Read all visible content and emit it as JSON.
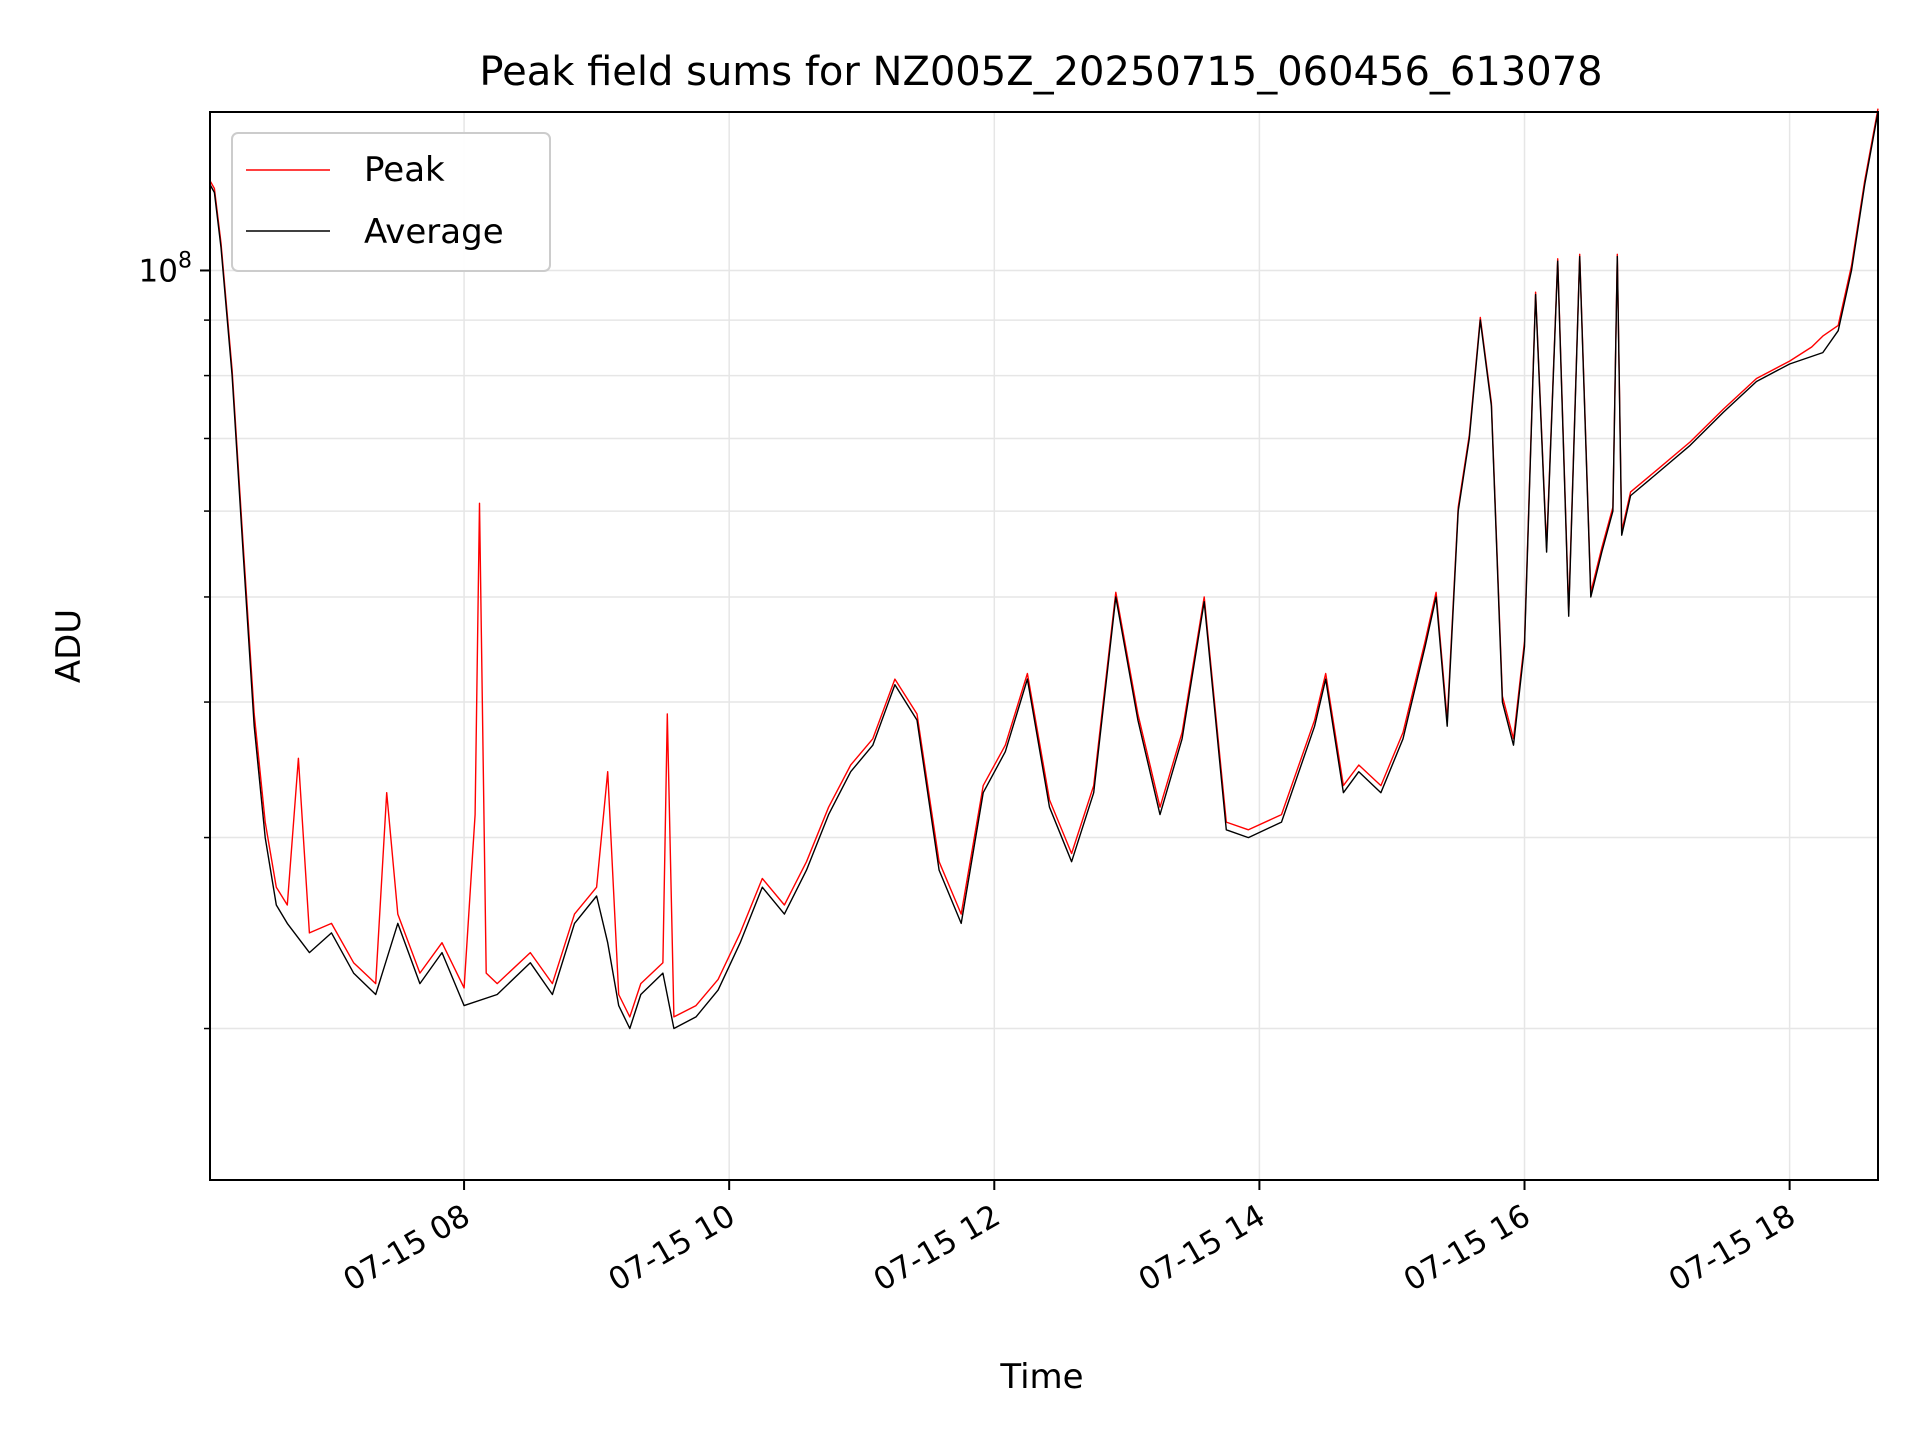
{
  "chart_data": {
    "type": "line",
    "title": "Peak field sums for NZ005Z_20250715_060456_613078",
    "xlabel": "Time",
    "ylabel": "ADU",
    "x_axis": {
      "kind": "time",
      "range": [
        "2025-07-15 06:05",
        "2025-07-15 18:40"
      ],
      "ticks": [
        {
          "value": "2025-07-15 08:00",
          "label": "07-15 08"
        },
        {
          "value": "2025-07-15 10:00",
          "label": "07-15 10"
        },
        {
          "value": "2025-07-15 12:00",
          "label": "07-15 12"
        },
        {
          "value": "2025-07-15 14:00",
          "label": "07-15 14"
        },
        {
          "value": "2025-07-15 16:00",
          "label": "07-15 16"
        },
        {
          "value": "2025-07-15 18:00",
          "label": "07-15 18"
        }
      ]
    },
    "y_axis": {
      "scale": "log",
      "range": [
        14500000,
        140000000
      ],
      "major_ticks": [
        {
          "value": 100000000,
          "base": "10",
          "exponent": "8"
        }
      ],
      "minor_ticks": [
        20000000,
        30000000,
        40000000,
        50000000,
        60000000,
        70000000,
        80000000,
        90000000
      ]
    },
    "grid": true,
    "legend": {
      "placement": "top-left",
      "entries": [
        {
          "label": "Peak",
          "color": "#ff0000"
        },
        {
          "label": "Average",
          "color": "#000000"
        }
      ]
    },
    "series": [
      {
        "name": "Average",
        "color": "#000000",
        "points": [
          [
            "2025-07-15 06:05",
            120000000
          ],
          [
            "2025-07-15 06:07",
            118000000
          ],
          [
            "2025-07-15 06:10",
            105000000
          ],
          [
            "2025-07-15 06:15",
            80000000
          ],
          [
            "2025-07-15 06:20",
            55000000
          ],
          [
            "2025-07-15 06:25",
            38000000
          ],
          [
            "2025-07-15 06:30",
            30000000
          ],
          [
            "2025-07-15 06:35",
            26000000
          ],
          [
            "2025-07-15 06:40",
            25000000
          ],
          [
            "2025-07-15 06:50",
            23500000
          ],
          [
            "2025-07-15 07:00",
            24500000
          ],
          [
            "2025-07-15 07:10",
            22500000
          ],
          [
            "2025-07-15 07:20",
            21500000
          ],
          [
            "2025-07-15 07:30",
            25000000
          ],
          [
            "2025-07-15 07:40",
            22000000
          ],
          [
            "2025-07-15 07:50",
            23500000
          ],
          [
            "2025-07-15 08:00",
            21000000
          ],
          [
            "2025-07-15 08:15",
            21500000
          ],
          [
            "2025-07-15 08:30",
            23000000
          ],
          [
            "2025-07-15 08:40",
            21500000
          ],
          [
            "2025-07-15 08:50",
            25000000
          ],
          [
            "2025-07-15 09:00",
            26500000
          ],
          [
            "2025-07-15 09:05",
            24000000
          ],
          [
            "2025-07-15 09:10",
            21000000
          ],
          [
            "2025-07-15 09:15",
            20000000
          ],
          [
            "2025-07-15 09:20",
            21500000
          ],
          [
            "2025-07-15 09:30",
            22500000
          ],
          [
            "2025-07-15 09:35",
            20000000
          ],
          [
            "2025-07-15 09:45",
            20500000
          ],
          [
            "2025-07-15 09:55",
            21700000
          ],
          [
            "2025-07-15 10:05",
            24000000
          ],
          [
            "2025-07-15 10:15",
            27000000
          ],
          [
            "2025-07-15 10:25",
            25500000
          ],
          [
            "2025-07-15 10:35",
            28000000
          ],
          [
            "2025-07-15 10:45",
            31500000
          ],
          [
            "2025-07-15 10:55",
            34500000
          ],
          [
            "2025-07-15 11:05",
            36500000
          ],
          [
            "2025-07-15 11:15",
            41500000
          ],
          [
            "2025-07-15 11:25",
            38500000
          ],
          [
            "2025-07-15 11:35",
            28000000
          ],
          [
            "2025-07-15 11:45",
            25000000
          ],
          [
            "2025-07-15 11:55",
            33000000
          ],
          [
            "2025-07-15 12:05",
            36000000
          ],
          [
            "2025-07-15 12:15",
            42000000
          ],
          [
            "2025-07-15 12:25",
            32000000
          ],
          [
            "2025-07-15 12:35",
            28500000
          ],
          [
            "2025-07-15 12:45",
            33000000
          ],
          [
            "2025-07-15 12:55",
            50000000
          ],
          [
            "2025-07-15 13:05",
            38500000
          ],
          [
            "2025-07-15 13:15",
            31500000
          ],
          [
            "2025-07-15 13:25",
            37000000
          ],
          [
            "2025-07-15 13:35",
            49500000
          ],
          [
            "2025-07-15 13:45",
            30500000
          ],
          [
            "2025-07-15 13:55",
            30000000
          ],
          [
            "2025-07-15 14:10",
            31000000
          ],
          [
            "2025-07-15 14:25",
            38000000
          ],
          [
            "2025-07-15 14:30",
            42000000
          ],
          [
            "2025-07-15 14:38",
            33000000
          ],
          [
            "2025-07-15 14:45",
            34500000
          ],
          [
            "2025-07-15 14:55",
            33000000
          ],
          [
            "2025-07-15 15:05",
            37000000
          ],
          [
            "2025-07-15 15:15",
            45000000
          ],
          [
            "2025-07-15 15:20",
            50000000
          ],
          [
            "2025-07-15 15:25",
            38000000
          ],
          [
            "2025-07-15 15:30",
            60000000
          ],
          [
            "2025-07-15 15:35",
            70000000
          ],
          [
            "2025-07-15 15:40",
            90000000
          ],
          [
            "2025-07-15 15:45",
            75000000
          ],
          [
            "2025-07-15 15:50",
            40000000
          ],
          [
            "2025-07-15 15:55",
            36500000
          ],
          [
            "2025-07-15 16:00",
            45000000
          ],
          [
            "2025-07-15 16:05",
            95000000
          ],
          [
            "2025-07-15 16:10",
            55000000
          ],
          [
            "2025-07-15 16:15",
            102000000
          ],
          [
            "2025-07-15 16:20",
            48000000
          ],
          [
            "2025-07-15 16:25",
            103000000
          ],
          [
            "2025-07-15 16:30",
            50000000
          ],
          [
            "2025-07-15 16:35",
            55000000
          ],
          [
            "2025-07-15 16:40",
            60000000
          ],
          [
            "2025-07-15 16:42",
            103000000
          ],
          [
            "2025-07-15 16:44",
            57000000
          ],
          [
            "2025-07-15 16:48",
            62000000
          ],
          [
            "2025-07-15 17:00",
            65000000
          ],
          [
            "2025-07-15 17:15",
            69000000
          ],
          [
            "2025-07-15 17:30",
            74000000
          ],
          [
            "2025-07-15 17:45",
            79000000
          ],
          [
            "2025-07-15 18:00",
            82000000
          ],
          [
            "2025-07-15 18:15",
            84000000
          ],
          [
            "2025-07-15 18:22",
            88000000
          ],
          [
            "2025-07-15 18:28",
            100000000
          ],
          [
            "2025-07-15 18:34",
            120000000
          ],
          [
            "2025-07-15 18:40",
            140000000
          ]
        ]
      },
      {
        "name": "Peak",
        "color": "#ff0000",
        "description_of_difference": "",
        "points": [
          [
            "2025-07-15 06:05",
            121000000
          ],
          [
            "2025-07-15 06:07",
            119000000
          ],
          [
            "2025-07-15 06:10",
            106000000
          ],
          [
            "2025-07-15 06:15",
            81000000
          ],
          [
            "2025-07-15 06:20",
            56000000
          ],
          [
            "2025-07-15 06:25",
            39000000
          ],
          [
            "2025-07-15 06:30",
            31000000
          ],
          [
            "2025-07-15 06:35",
            27000000
          ],
          [
            "2025-07-15 06:40",
            26000000
          ],
          [
            "2025-07-15 06:45",
            35500000
          ],
          [
            "2025-07-15 06:50",
            24500000
          ],
          [
            "2025-07-15 07:00",
            25000000
          ],
          [
            "2025-07-15 07:10",
            23000000
          ],
          [
            "2025-07-15 07:20",
            22000000
          ],
          [
            "2025-07-15 07:25",
            33000000
          ],
          [
            "2025-07-15 07:30",
            25500000
          ],
          [
            "2025-07-15 07:40",
            22500000
          ],
          [
            "2025-07-15 07:50",
            24000000
          ],
          [
            "2025-07-15 08:00",
            21800000
          ],
          [
            "2025-07-15 08:05",
            31500000
          ],
          [
            "2025-07-15 08:07",
            61000000
          ],
          [
            "2025-07-15 08:10",
            22500000
          ],
          [
            "2025-07-15 08:15",
            22000000
          ],
          [
            "2025-07-15 08:30",
            23500000
          ],
          [
            "2025-07-15 08:40",
            22000000
          ],
          [
            "2025-07-15 08:50",
            25500000
          ],
          [
            "2025-07-15 09:00",
            27000000
          ],
          [
            "2025-07-15 09:05",
            34500000
          ],
          [
            "2025-07-15 09:10",
            21500000
          ],
          [
            "2025-07-15 09:15",
            20500000
          ],
          [
            "2025-07-15 09:20",
            22000000
          ],
          [
            "2025-07-15 09:30",
            23000000
          ],
          [
            "2025-07-15 09:32",
            39000000
          ],
          [
            "2025-07-15 09:35",
            20500000
          ],
          [
            "2025-07-15 09:45",
            21000000
          ],
          [
            "2025-07-15 09:55",
            22200000
          ],
          [
            "2025-07-15 10:05",
            24500000
          ],
          [
            "2025-07-15 10:15",
            27500000
          ],
          [
            "2025-07-15 10:25",
            26000000
          ],
          [
            "2025-07-15 10:35",
            28500000
          ],
          [
            "2025-07-15 10:45",
            32000000
          ],
          [
            "2025-07-15 10:55",
            35000000
          ],
          [
            "2025-07-15 11:05",
            37000000
          ],
          [
            "2025-07-15 11:15",
            42000000
          ],
          [
            "2025-07-15 11:25",
            39000000
          ],
          [
            "2025-07-15 11:35",
            28500000
          ],
          [
            "2025-07-15 11:45",
            25500000
          ],
          [
            "2025-07-15 11:55",
            33500000
          ],
          [
            "2025-07-15 12:05",
            36500000
          ],
          [
            "2025-07-15 12:15",
            42500000
          ],
          [
            "2025-07-15 12:25",
            32500000
          ],
          [
            "2025-07-15 12:35",
            29000000
          ],
          [
            "2025-07-15 12:45",
            33500000
          ],
          [
            "2025-07-15 12:55",
            50500000
          ],
          [
            "2025-07-15 13:05",
            39000000
          ],
          [
            "2025-07-15 13:15",
            32000000
          ],
          [
            "2025-07-15 13:25",
            37500000
          ],
          [
            "2025-07-15 13:35",
            50000000
          ],
          [
            "2025-07-15 13:45",
            31000000
          ],
          [
            "2025-07-15 13:55",
            30500000
          ],
          [
            "2025-07-15 14:10",
            31500000
          ],
          [
            "2025-07-15 14:25",
            38500000
          ],
          [
            "2025-07-15 14:30",
            42500000
          ],
          [
            "2025-07-15 14:38",
            33500000
          ],
          [
            "2025-07-15 14:45",
            35000000
          ],
          [
            "2025-07-15 14:55",
            33500000
          ],
          [
            "2025-07-15 15:05",
            37500000
          ],
          [
            "2025-07-15 15:15",
            45500000
          ],
          [
            "2025-07-15 15:20",
            50500000
          ],
          [
            "2025-07-15 15:25",
            38500000
          ],
          [
            "2025-07-15 15:30",
            60500000
          ],
          [
            "2025-07-15 15:35",
            70500000
          ],
          [
            "2025-07-15 15:40",
            90500000
          ],
          [
            "2025-07-15 15:45",
            75500000
          ],
          [
            "2025-07-15 15:50",
            40500000
          ],
          [
            "2025-07-15 15:55",
            37000000
          ],
          [
            "2025-07-15 16:00",
            45500000
          ],
          [
            "2025-07-15 16:05",
            95500000
          ],
          [
            "2025-07-15 16:10",
            55500000
          ],
          [
            "2025-07-15 16:15",
            102500000
          ],
          [
            "2025-07-15 16:20",
            48500000
          ],
          [
            "2025-07-15 16:25",
            103500000
          ],
          [
            "2025-07-15 16:30",
            50500000
          ],
          [
            "2025-07-15 16:35",
            55500000
          ],
          [
            "2025-07-15 16:40",
            60500000
          ],
          [
            "2025-07-15 16:42",
            103500000
          ],
          [
            "2025-07-15 16:44",
            57500000
          ],
          [
            "2025-07-15 16:48",
            62500000
          ],
          [
            "2025-07-15 17:00",
            65500000
          ],
          [
            "2025-07-15 17:15",
            69500000
          ],
          [
            "2025-07-15 17:30",
            74500000
          ],
          [
            "2025-07-15 17:45",
            79500000
          ],
          [
            "2025-07-15 18:00",
            82500000
          ],
          [
            "2025-07-15 18:10",
            85000000
          ],
          [
            "2025-07-15 18:15",
            87000000
          ],
          [
            "2025-07-15 18:22",
            89000000
          ],
          [
            "2025-07-15 18:28",
            101000000
          ],
          [
            "2025-07-15 18:34",
            121000000
          ],
          [
            "2025-07-15 18:40",
            141000000
          ]
        ]
      }
    ]
  }
}
